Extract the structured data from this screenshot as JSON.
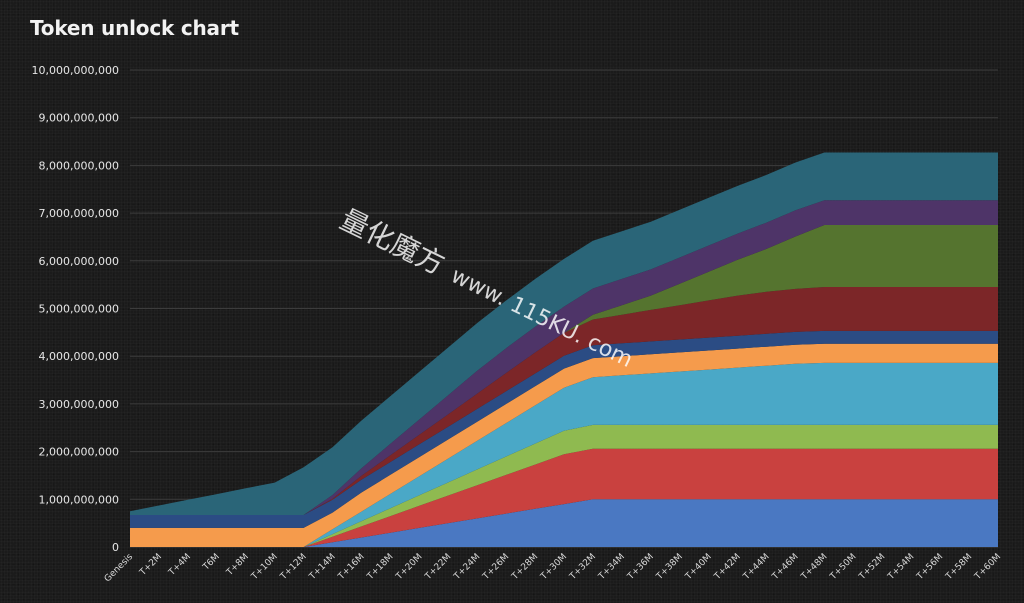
{
  "chart_data": {
    "type": "area",
    "stacked": true,
    "title": "Token unlock chart",
    "xlabel": "",
    "ylabel": "",
    "ylim": [
      0,
      10000000000
    ],
    "grid": true,
    "legend": "none",
    "y_ticks": [
      "0",
      "1,000,000,000",
      "2,000,000,000",
      "3,000,000,000",
      "4,000,000,000",
      "5,000,000,000",
      "6,000,000,000",
      "7,000,000,000",
      "8,000,000,000",
      "9,000,000,000",
      "10,000,000,000"
    ],
    "categories": [
      "Genesis",
      "T+2M",
      "T+4M",
      "T6M",
      "T+8M",
      "T+10M",
      "T+12M",
      "T+14M",
      "T+16M",
      "T+18M",
      "T+20M",
      "T+22M",
      "T+24M",
      "T+26M",
      "T+28M",
      "T+30M",
      "T+32M",
      "T+34M",
      "T+36M",
      "T+38M",
      "T+40M",
      "T+42M",
      "T+44M",
      "T+46M",
      "T+48M",
      "T+50M",
      "T+52M",
      "T+54M",
      "T+56M",
      "T+58M",
      "T+60M"
    ],
    "series": [
      {
        "color": "#4a78c2",
        "values": [
          0,
          0,
          0,
          0,
          0,
          0,
          0,
          100000000,
          200000000,
          300000000,
          400000000,
          500000000,
          600000000,
          700000000,
          800000000,
          900000000,
          1000000000,
          1000000000,
          1000000000,
          1000000000,
          1000000000,
          1000000000,
          1000000000,
          1000000000,
          1000000000,
          1000000000,
          1000000000,
          1000000000,
          1000000000,
          1000000000,
          1000000000
        ]
      },
      {
        "color": "#c9413f",
        "values": [
          0,
          0,
          0,
          0,
          0,
          0,
          0,
          116000000,
          232000000,
          348000000,
          464000000,
          580000000,
          696000000,
          812000000,
          928000000,
          1044000000,
          1060000000,
          1060000000,
          1060000000,
          1060000000,
          1060000000,
          1060000000,
          1060000000,
          1060000000,
          1060000000,
          1060000000,
          1060000000,
          1060000000,
          1060000000,
          1060000000,
          1060000000
        ]
      },
      {
        "color": "#8fba50",
        "values": [
          0,
          0,
          0,
          0,
          0,
          0,
          0,
          55000000,
          110000000,
          165000000,
          220000000,
          275000000,
          330000000,
          385000000,
          440000000,
          495000000,
          500000000,
          500000000,
          500000000,
          500000000,
          500000000,
          500000000,
          500000000,
          500000000,
          500000000,
          500000000,
          500000000,
          500000000,
          500000000,
          500000000,
          500000000
        ]
      },
      {
        "color": "#4aa8c7",
        "values": [
          0,
          0,
          0,
          0,
          0,
          0,
          0,
          100000000,
          200000000,
          300000000,
          400000000,
          500000000,
          600000000,
          700000000,
          800000000,
          900000000,
          1000000000,
          1040000000,
          1080000000,
          1120000000,
          1160000000,
          1200000000,
          1240000000,
          1280000000,
          1300000000,
          1300000000,
          1300000000,
          1300000000,
          1300000000,
          1300000000,
          1300000000
        ]
      },
      {
        "color": "#f59b4c",
        "values": [
          400000000,
          400000000,
          400000000,
          400000000,
          400000000,
          400000000,
          400000000,
          350000000,
          400000000,
          400000000,
          400000000,
          400000000,
          400000000,
          400000000,
          400000000,
          400000000,
          400000000,
          400000000,
          400000000,
          400000000,
          400000000,
          400000000,
          400000000,
          400000000,
          400000000,
          400000000,
          400000000,
          400000000,
          400000000,
          400000000,
          400000000
        ]
      },
      {
        "color": "#2b4c84",
        "values": [
          270000000,
          270000000,
          270000000,
          270000000,
          270000000,
          270000000,
          270000000,
          270000000,
          270000000,
          270000000,
          270000000,
          270000000,
          270000000,
          270000000,
          270000000,
          270000000,
          270000000,
          270000000,
          270000000,
          270000000,
          270000000,
          270000000,
          270000000,
          270000000,
          270000000,
          270000000,
          270000000,
          270000000,
          270000000,
          270000000,
          270000000
        ]
      },
      {
        "color": "#7c2628",
        "values": [
          0,
          0,
          0,
          0,
          0,
          0,
          0,
          20000000,
          80000000,
          140000000,
          200000000,
          260000000,
          320000000,
          380000000,
          440000000,
          480000000,
          540000000,
          600000000,
          660000000,
          720000000,
          780000000,
          840000000,
          880000000,
          900000000,
          920000000,
          920000000,
          920000000,
          920000000,
          920000000,
          920000000,
          920000000
        ]
      },
      {
        "color": "#55742f",
        "values": [
          0,
          0,
          0,
          0,
          0,
          0,
          0,
          0,
          0,
          0,
          0,
          0,
          0,
          0,
          0,
          0,
          100000000,
          200000000,
          300000000,
          450000000,
          600000000,
          750000000,
          900000000,
          1100000000,
          1300000000,
          1300000000,
          1300000000,
          1300000000,
          1300000000,
          1300000000,
          1300000000
        ]
      },
      {
        "color": "#4e3468",
        "values": [
          0,
          0,
          0,
          0,
          0,
          0,
          0,
          80000000,
          160000000,
          240000000,
          320000000,
          400000000,
          480000000,
          520000000,
          540000000,
          550000000,
          550000000,
          550000000,
          550000000,
          550000000,
          550000000,
          550000000,
          550000000,
          550000000,
          520000000,
          520000000,
          520000000,
          520000000,
          520000000,
          520000000,
          520000000
        ]
      },
      {
        "color": "#2a6578",
        "values": [
          80000000,
          200000000,
          320000000,
          440000000,
          560000000,
          680000000,
          1000000000,
          1000000000,
          1000000000,
          1000000000,
          1000000000,
          1000000000,
          1000000000,
          1000000000,
          1000000000,
          1000000000,
          1000000000,
          1000000000,
          1000000000,
          1000000000,
          1000000000,
          1000000000,
          1000000000,
          1000000000,
          1000000000,
          1000000000,
          1000000000,
          1000000000,
          1000000000,
          1000000000,
          1000000000
        ]
      }
    ]
  },
  "watermark": {
    "text_cn": "量化魔方",
    "text_url": "www. 115KU. com"
  }
}
